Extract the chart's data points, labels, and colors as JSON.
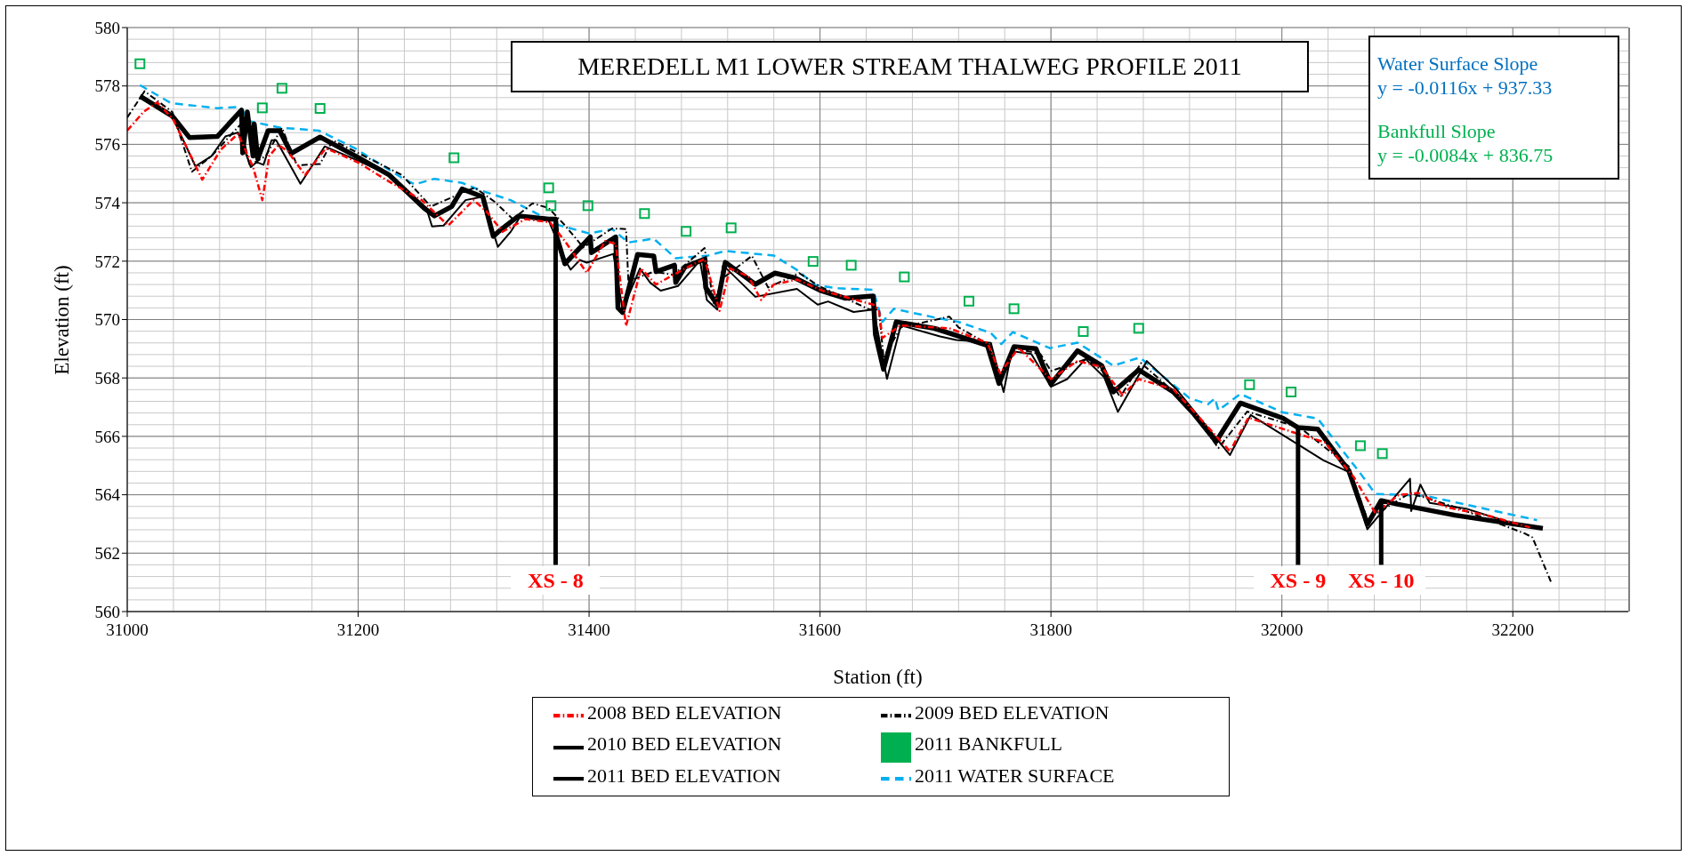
{
  "chart_data": {
    "type": "line",
    "title": "MEREDELL M1 LOWER STREAM THALWEG PROFILE 2011",
    "xlabel": "Station (ft)",
    "ylabel": "Elevation (ft)",
    "xlim": [
      31000,
      32300
    ],
    "ylim": [
      560,
      580
    ],
    "xticks": [
      31000,
      31200,
      31400,
      31600,
      31800,
      32000,
      32200
    ],
    "yticks": [
      560,
      562,
      564,
      566,
      568,
      570,
      572,
      574,
      576,
      578,
      580
    ],
    "grid": true,
    "legend": "bottom",
    "annotations": [
      "Water Surface Slope",
      "y = -0.0116x + 937.33",
      "Bankfull Slope",
      "y = -0.0084x + 836.75",
      {
        "text": "XS - 8",
        "x": 31371,
        "y": 561.6
      },
      {
        "text": "XS - 9",
        "x": 32014,
        "y": 561.6
      },
      {
        "text": "XS - 10",
        "x": 32086,
        "y": 561.6
      }
    ],
    "series": [
      {
        "name": "2011 BANKFULL",
        "type": "scatter",
        "marker": "square",
        "color": "#00b050",
        "x": [
          31011,
          31117,
          31134,
          31167,
          31283,
          31365,
          31367,
          31399,
          31448,
          31484,
          31523,
          31594,
          31627,
          31673,
          31729,
          31768,
          31828,
          31876,
          31972,
          32008,
          32068,
          32087
        ],
        "values": [
          578.76,
          577.25,
          577.92,
          577.23,
          575.54,
          574.51,
          573.9,
          573.9,
          573.63,
          573.02,
          573.14,
          571.99,
          571.86,
          571.46,
          570.63,
          570.37,
          569.59,
          569.7,
          567.77,
          567.52,
          565.68,
          565.41
        ]
      },
      {
        "name": "2011 WATER SURFACE",
        "line_style": "dashed",
        "marker": "none",
        "color": "#00b0f0",
        "x": [
          31011,
          31038,
          31078,
          31098,
          31106,
          31133,
          31166,
          31197,
          31238,
          31249,
          31266,
          31290,
          31307,
          31332,
          31348,
          31374,
          31400,
          31420,
          31434,
          31456,
          31475,
          31503,
          31518,
          31560,
          31580,
          31596,
          31616,
          31646,
          31654,
          31664,
          31698,
          31720,
          31748,
          31757,
          31767,
          31799,
          31823,
          31854,
          31877,
          31920,
          31936,
          31942,
          31945,
          31964,
          32001,
          32031,
          32068,
          32081,
          32125,
          32221
        ],
        "values": [
          578.03,
          577.41,
          577.24,
          577.28,
          576.79,
          576.57,
          576.47,
          575.87,
          574.85,
          574.63,
          574.82,
          574.68,
          574.41,
          574.09,
          573.77,
          573.23,
          572.95,
          573.1,
          572.64,
          572.77,
          572.1,
          572.19,
          572.35,
          572.19,
          571.7,
          571.18,
          571.07,
          571.02,
          569.92,
          570.37,
          570.08,
          569.92,
          569.54,
          569.16,
          569.57,
          569.02,
          569.21,
          568.42,
          568.7,
          567.31,
          567.1,
          567.3,
          566.89,
          567.45,
          566.82,
          566.61,
          564.73,
          564.03,
          563.96,
          563.13
        ]
      },
      {
        "name": "2011 BED ELEVATION",
        "line_style": "solid",
        "marker": "none",
        "color": "#000000",
        "x": [
          31011,
          31039,
          31054,
          31078,
          31099,
          31100,
          31104,
          31109,
          31110,
          31113,
          31122,
          31132,
          31142,
          31167,
          31200,
          31227,
          31257,
          31266,
          31281,
          31290,
          31308,
          31317,
          31323,
          31339,
          31365,
          31371,
          31372,
          31379,
          31401,
          31402,
          31423,
          31425,
          31429,
          31442,
          31456,
          31458,
          31474,
          31475,
          31483,
          31500,
          31501,
          31511,
          31518,
          31544,
          31561,
          31578,
          31600,
          31622,
          31646,
          31648,
          31655,
          31666,
          31699,
          31745,
          31755,
          31768,
          31787,
          31800,
          31823,
          31844,
          31854,
          31876,
          31906,
          31924,
          31943,
          31964,
          32001,
          32014,
          32031,
          32058,
          32074,
          32086,
          32100,
          32150,
          32226
        ],
        "values": [
          577.65,
          576.97,
          576.23,
          576.27,
          577.17,
          575.71,
          577.11,
          575.6,
          576.7,
          575.5,
          576.47,
          576.47,
          575.69,
          576.25,
          575.55,
          574.95,
          573.82,
          573.55,
          573.87,
          574.47,
          574.2,
          572.85,
          573.06,
          573.55,
          573.44,
          573.44,
          572.83,
          571.91,
          572.83,
          572.29,
          572.83,
          570.4,
          570.24,
          572.23,
          572.18,
          571.64,
          571.86,
          571.27,
          571.8,
          572.07,
          571.1,
          570.51,
          571.96,
          571.21,
          571.59,
          571.43,
          571.0,
          570.73,
          570.81,
          569.49,
          568.3,
          569.92,
          569.7,
          569.11,
          567.81,
          569.07,
          569.0,
          567.79,
          568.93,
          568.42,
          567.52,
          568.28,
          567.52,
          566.76,
          565.82,
          567.14,
          566.62,
          566.3,
          566.25,
          564.82,
          562.99,
          563.8,
          563.68,
          563.3,
          562.85
        ]
      },
      {
        "name": "2010 BED ELEVATION",
        "line_style": "solid",
        "marker": "none",
        "color": "#000000",
        "x": [
          31014,
          31039,
          31059,
          31073,
          31085,
          31096,
          31107,
          31112,
          31118,
          31125,
          31129,
          31150,
          31171,
          31200,
          31227,
          31259,
          31264,
          31274,
          31293,
          31307,
          31321,
          31332,
          31340,
          31365,
          31380,
          31384,
          31392,
          31398,
          31421,
          31429,
          31444,
          31453,
          31462,
          31477,
          31496,
          31502,
          31511,
          31516,
          31544,
          31580,
          31598,
          31607,
          31629,
          31646,
          31649,
          31658,
          31670,
          31704,
          31718,
          31737,
          31748,
          31759,
          31766,
          31783,
          31800,
          31814,
          31830,
          31846,
          31858,
          31883,
          31909,
          31955,
          31973,
          32036,
          32059,
          32074,
          32111,
          32112,
          32120,
          32128,
          32160,
          32199
        ],
        "values": [
          577.6,
          576.95,
          575.25,
          575.6,
          576.27,
          576.41,
          575.22,
          575.39,
          575.3,
          576.14,
          576.14,
          574.65,
          575.93,
          575.44,
          574.95,
          573.82,
          573.19,
          573.22,
          574.09,
          574.2,
          572.49,
          573.0,
          573.5,
          573.39,
          571.98,
          571.71,
          572.04,
          571.95,
          572.25,
          570.34,
          571.75,
          571.26,
          570.99,
          571.15,
          572.02,
          570.67,
          570.34,
          571.86,
          570.78,
          571.05,
          570.51,
          570.62,
          570.26,
          570.34,
          569.8,
          567.97,
          569.8,
          569.42,
          569.3,
          569.25,
          569.2,
          567.52,
          568.92,
          568.82,
          567.7,
          567.96,
          568.65,
          568.03,
          566.84,
          568.58,
          567.6,
          565.36,
          566.73,
          565.18,
          564.76,
          562.82,
          564.55,
          563.44,
          564.35,
          563.72,
          563.52,
          563.03
        ]
      },
      {
        "name": "2009 BED ELEVATION",
        "line_style": "dashdot",
        "marker": "none",
        "color": "#000000",
        "x": [
          31000,
          31015,
          31039,
          31056,
          31073,
          31098,
          31106,
          31120,
          31134,
          31147,
          31167,
          31178,
          31238,
          31263,
          31282,
          31301,
          31318,
          31334,
          31351,
          31365,
          31379,
          31395,
          31420,
          31432,
          31434,
          31456,
          31473,
          31500,
          31508,
          31516,
          31541,
          31555,
          31582,
          31599,
          31643,
          31651,
          31655,
          31670,
          31712,
          31720,
          31747,
          31756,
          31769,
          31791,
          31800,
          31831,
          31847,
          31860,
          31878,
          31916,
          31945,
          31970,
          32016,
          32058,
          32074,
          32111,
          32150,
          32210,
          32217,
          32233
        ],
        "values": [
          576.92,
          577.82,
          577.11,
          575.06,
          575.6,
          576.68,
          575.28,
          575.6,
          576.57,
          575.28,
          575.33,
          576.14,
          574.95,
          573.87,
          574.2,
          574.52,
          574.04,
          573.44,
          573.98,
          573.82,
          573.23,
          572.47,
          573.12,
          573.1,
          571.31,
          571.64,
          571.53,
          572.45,
          570.56,
          571.42,
          572.18,
          571.1,
          571.59,
          571.15,
          570.34,
          570.34,
          568.7,
          569.73,
          570.1,
          569.73,
          569.13,
          568.05,
          569.03,
          568.81,
          568.24,
          568.65,
          568.17,
          567.34,
          568.51,
          567.2,
          565.6,
          566.85,
          566.29,
          564.97,
          563.16,
          564.06,
          563.58,
          562.68,
          562.54,
          561.02
        ]
      },
      {
        "name": "2008 BED ELEVATION",
        "line_style": "dashdot",
        "marker": "none",
        "color": "#ff0000",
        "x": [
          31000,
          31014,
          31026,
          31040,
          31065,
          31081,
          31096,
          31109,
          31117,
          31123,
          31131,
          31139,
          31154,
          31172,
          31200,
          31224,
          31255,
          31278,
          31300,
          31311,
          31325,
          31345,
          31366,
          31379,
          31398,
          31414,
          31423,
          31432,
          31445,
          31458,
          31483,
          31500,
          31513,
          31522,
          31538,
          31549,
          31560,
          31580,
          31602,
          31646,
          31651,
          31654,
          31670,
          31712,
          31745,
          31756,
          31772,
          31800,
          31823,
          31844,
          31862,
          31876,
          31906,
          31927,
          31955,
          31971,
          32009,
          32037,
          32062,
          32081,
          32101,
          32118,
          32143,
          32178,
          32215
        ],
        "values": [
          576.47,
          577.11,
          577.44,
          576.84,
          574.79,
          575.82,
          576.36,
          575.22,
          574.09,
          575.6,
          575.98,
          575.76,
          574.95,
          575.87,
          575.38,
          574.79,
          574.09,
          573.22,
          574.09,
          573.71,
          573.01,
          573.44,
          573.33,
          572.69,
          571.6,
          572.69,
          572.59,
          569.78,
          571.75,
          571.2,
          571.75,
          572.08,
          570.3,
          571.75,
          571.48,
          570.67,
          571.2,
          571.37,
          570.99,
          570.51,
          570.34,
          569.37,
          569.8,
          569.7,
          569.2,
          568.16,
          569.03,
          567.96,
          568.58,
          568.38,
          567.41,
          567.96,
          567.61,
          566.71,
          565.49,
          566.64,
          566.15,
          565.8,
          564.62,
          563.37,
          563.99,
          564.06,
          563.57,
          563.29,
          562.88
        ]
      },
      {
        "type": "line",
        "line_style": "solid",
        "marker": "none",
        "color": "#000000",
        "x": [
          31371,
          31371
        ],
        "values": [
          573.44,
          561.6
        ]
      },
      {
        "type": "line",
        "line_style": "solid",
        "marker": "none",
        "color": "#000000",
        "x": [
          32014,
          32014
        ],
        "values": [
          566.3,
          561.6
        ]
      },
      {
        "type": "line",
        "line_style": "solid",
        "marker": "none",
        "color": "#000000",
        "x": [
          32086,
          32086
        ],
        "values": [
          563.8,
          561.6
        ]
      }
    ]
  }
}
